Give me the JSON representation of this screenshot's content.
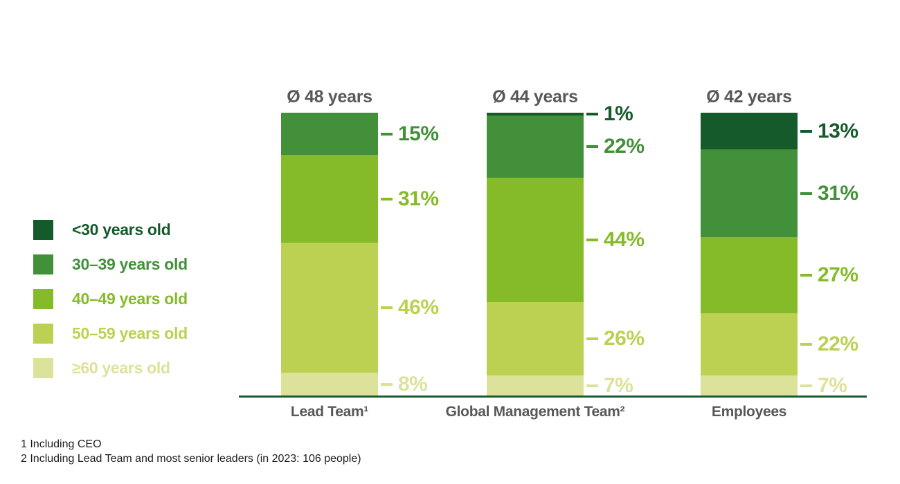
{
  "chart_data": {
    "type": "bar",
    "subtype": "stacked-percentage-columns",
    "title": "",
    "xlabel": "",
    "ylabel": "",
    "ylim": [
      0,
      100
    ],
    "grid": false,
    "legend_position": "left",
    "value_suffix": "%",
    "categories": [
      "Lead Team¹",
      "Global Management Team²",
      "Employees"
    ],
    "group_titles": [
      "Ø 48 years",
      "Ø 44 years",
      "Ø 42 years"
    ],
    "series": [
      {
        "name": "<30 years old",
        "color": "#155A2B",
        "values": [
          0,
          1,
          13
        ]
      },
      {
        "name": "30–39 years old",
        "color": "#43903A",
        "values": [
          15,
          22,
          31
        ]
      },
      {
        "name": "40–49 years old",
        "color": "#85BB29",
        "values": [
          31,
          44,
          27
        ]
      },
      {
        "name": "50–59 years old",
        "color": "#BCD152",
        "values": [
          46,
          26,
          22
        ]
      },
      {
        "name": "≥60 years old",
        "color": "#DDE29B",
        "values": [
          8,
          7,
          7
        ]
      }
    ]
  },
  "footnotes": {
    "line1": "1 Including CEO",
    "line2": "2 Including Lead Team and most senior leaders (in 2023: 106 people)"
  },
  "colors": {
    "axis_line": "#1B5B33",
    "group_title_gray": "#58585A",
    "footnote_text": "#1D1D1B",
    "background": "#FFFFFF"
  }
}
